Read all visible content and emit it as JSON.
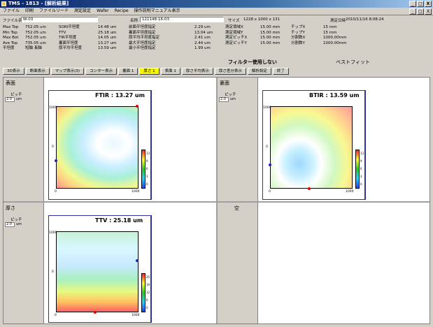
{
  "window": {
    "title": "TMS - 1813 - [解析結果]",
    "controls": {
      "minimize": "_",
      "maximize": "□",
      "close": "X"
    },
    "accent": "#0a246a"
  },
  "menu": {
    "items": [
      "ファイル",
      "印刷",
      "ファイルリード",
      "測定設定",
      "Wafer",
      "Recipe",
      "操作説明マニュアル表示"
    ],
    "mdi_controls": {
      "minimize": "_",
      "restore": "□",
      "close": "X"
    }
  },
  "info": {
    "file_label": "ファイル名",
    "file_value": "W-03",
    "name_label": "名称",
    "name_value": "121148-16-03",
    "size_label": "サイズ",
    "size_value": "1228 x 1000 x 131",
    "date_label": "測定日時",
    "date_value": "2010/11/16 8:08:24",
    "stats_col1": [
      "Max Top",
      "Min Top",
      "Max Bot",
      "Ave Top",
      "平坦度"
    ],
    "stats_col2": [
      "752.05 um",
      "752.05 um",
      "752.05 um",
      "735.05 um",
      "短軸 長軸"
    ],
    "stats_col3": [
      "SORI平坦度",
      "TTV",
      "TIR平坦度",
      "裏面平坦度",
      "厚平均平坦度"
    ],
    "stats_col4": [
      "14.48 um",
      "25.18 um",
      "14.05 um",
      "13.27 um",
      "13.59 um"
    ],
    "stats_col5": [
      "前面平坦度指定",
      "裏面平坦度指定",
      "厚平均平坦度指定",
      "最大平坦度指定",
      "最小平坦度指定"
    ],
    "stats_col6": [
      "2.29 um",
      "13.04 um",
      "2.41 um",
      "2.44 um",
      "1.99 um"
    ],
    "stats_col7": [
      "測定領域X",
      "測定領域Y",
      "測定ピッチX",
      "測定ピッチY"
    ],
    "stats_col8": [
      "15.00 mm",
      "15.00 mm",
      "15.00 mm",
      "15.00 mm"
    ],
    "stats_col9": [
      "チップX",
      "チップY",
      "分割数X",
      "分割数Y"
    ],
    "stats_col10": [
      "15 mm",
      "15 mm",
      "1000.00mm",
      "1000.00mm"
    ],
    "filter_text": "フィルター使用しない",
    "fit_text": "ベストフィット"
  },
  "tabs": [
    {
      "label": "3D表示",
      "active": false
    },
    {
      "label": "断面表示",
      "active": false
    },
    {
      "label": "マップ表示(3)",
      "active": false
    },
    {
      "label": "コンター表示",
      "active": false
    },
    {
      "label": "裏面 1",
      "active": false
    },
    {
      "label": "厚さ 1",
      "active": true
    },
    {
      "label": "表面 1",
      "active": false
    },
    {
      "label": "厚さ平均表示",
      "active": false
    },
    {
      "label": "厚さ差分表示",
      "active": false
    },
    {
      "label": "解析設定",
      "active": false
    },
    {
      "label": "終了",
      "active": false
    }
  ],
  "panes": {
    "front": {
      "title": "表面",
      "pitch_label": "ピッチ",
      "pitch_value": "2.0",
      "pitch_unit": "um",
      "map_title": "FTIR : 13.27 um",
      "axis_top": "1000",
      "axis_mid": "0",
      "axis_bottom_left": "0",
      "axis_bottom_right": "1000",
      "scale": [
        "13",
        "9",
        "6",
        "3",
        "0"
      ]
    },
    "back": {
      "title": "裏面",
      "pitch_label": "ピッチ",
      "pitch_value": "2.0",
      "pitch_unit": "um",
      "map_title": "BTIR : 13.59 um",
      "axis_top": "1000",
      "axis_mid": "0",
      "axis_bottom_left": "0",
      "axis_bottom_right": "1000",
      "scale": [
        "13",
        "9",
        "6",
        "3",
        "0"
      ]
    },
    "thickness": {
      "title": "厚さ",
      "pitch_label": "ピッチ",
      "pitch_value": "2.0",
      "pitch_unit": "um",
      "map_title": "TTV : 25.18 um",
      "axis_top": "1000",
      "axis_mid": "0",
      "axis_bottom_left": "0",
      "axis_bottom_right": "1000",
      "scale": [
        "25",
        "19",
        "12",
        "6",
        "0"
      ]
    },
    "empty": {
      "title": "空"
    }
  }
}
